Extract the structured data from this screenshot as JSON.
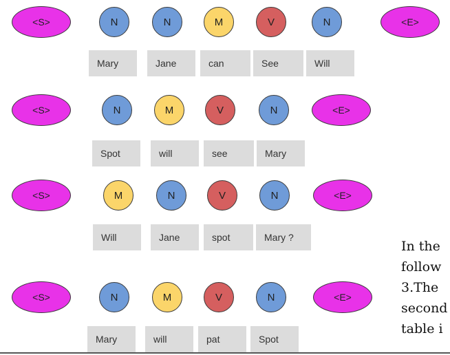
{
  "tag_labels": {
    "S": "<S>",
    "E": "<E>",
    "N": "N",
    "M": "M",
    "V": "V"
  },
  "sentences": [
    {
      "tags": [
        "S",
        "N",
        "N",
        "M",
        "V",
        "N",
        "E"
      ],
      "words": [
        "Mary",
        "Jane",
        "can",
        "See",
        "Will"
      ]
    },
    {
      "tags": [
        "S",
        "N",
        "M",
        "V",
        "N",
        "E"
      ],
      "words": [
        "Spot",
        "will",
        "see",
        "Mary"
      ]
    },
    {
      "tags": [
        "S",
        "M",
        "N",
        "V",
        "N",
        "E"
      ],
      "words": [
        "Will",
        "Jane",
        "spot",
        "Mary ?"
      ]
    },
    {
      "tags": [
        "S",
        "N",
        "M",
        "V",
        "N",
        "E"
      ],
      "words": [
        "Mary",
        "will",
        "pat",
        "Spot"
      ]
    }
  ],
  "tag_colors": {
    "N": "#6f9bd8",
    "M": "#fbd56a",
    "V": "#d55f5f",
    "S": "#e832e8",
    "E": "#e832e8"
  },
  "side_text": {
    "line1": "In the",
    "line2": "follow",
    "line3": "3.The",
    "line4": "second",
    "line5": "table i"
  }
}
